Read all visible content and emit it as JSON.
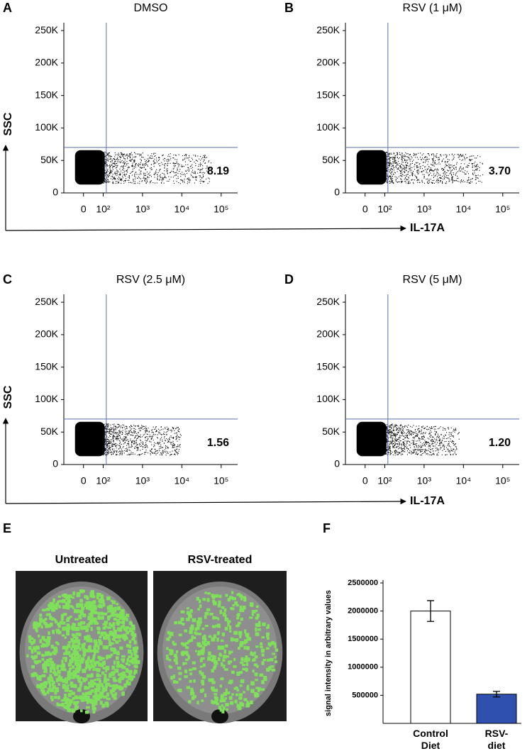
{
  "chart_data": [
    {
      "type": "flow",
      "panel": "A",
      "title": "DMSO",
      "annotation": "8.19",
      "ylabel": "SSC",
      "xlabel": "IL-17A",
      "xscale": "biexponential",
      "xlim": [
        -100,
        262144
      ],
      "ylim": [
        0,
        262144
      ],
      "xticks": [
        0,
        {
          "value": 100,
          "label": "10²"
        },
        {
          "value": 1000,
          "label": "10³"
        },
        {
          "value": 10000,
          "label": "10⁴"
        },
        {
          "value": 100000,
          "label": "10⁵"
        }
      ],
      "yticks": [
        0,
        {
          "value": 50000,
          "label": "50K"
        },
        {
          "value": 100000,
          "label": "100K"
        },
        {
          "value": 150000,
          "label": "150K"
        },
        {
          "value": 200000,
          "label": "200K"
        },
        {
          "value": 250000,
          "label": "250K"
        }
      ],
      "gate": {
        "x": 120,
        "y": 70000
      },
      "gate_color": "#5b6fb5"
    },
    {
      "type": "flow",
      "panel": "B",
      "title": "RSV (1 μM)",
      "annotation": "3.70",
      "xscale": "biexponential",
      "xlim": [
        -100,
        262144
      ],
      "ylim": [
        0,
        262144
      ],
      "xticks": [
        0,
        {
          "value": 100,
          "label": "10²"
        },
        {
          "value": 1000,
          "label": "10³"
        },
        {
          "value": 10000,
          "label": "10⁴"
        },
        {
          "value": 100000,
          "label": "10⁵"
        }
      ],
      "yticks": [
        0,
        {
          "value": 50000,
          "label": "50K"
        },
        {
          "value": 100000,
          "label": "100K"
        },
        {
          "value": 150000,
          "label": "150K"
        },
        {
          "value": 200000,
          "label": "200K"
        },
        {
          "value": 250000,
          "label": "250K"
        }
      ],
      "gate": {
        "x": 120,
        "y": 70000
      },
      "gate_color": "#5b6fb5"
    },
    {
      "type": "flow",
      "panel": "C",
      "title": "RSV (2.5 μM)",
      "annotation": "1.56",
      "ylabel": "SSC",
      "xlabel": "IL-17A",
      "xscale": "biexponential",
      "xlim": [
        -100,
        262144
      ],
      "ylim": [
        0,
        262144
      ],
      "xticks": [
        0,
        {
          "value": 100,
          "label": "10²"
        },
        {
          "value": 1000,
          "label": "10³"
        },
        {
          "value": 10000,
          "label": "10⁴"
        },
        {
          "value": 100000,
          "label": "10⁵"
        }
      ],
      "yticks": [
        0,
        {
          "value": 50000,
          "label": "50K"
        },
        {
          "value": 100000,
          "label": "100K"
        },
        {
          "value": 150000,
          "label": "150K"
        },
        {
          "value": 200000,
          "label": "200K"
        },
        {
          "value": 250000,
          "label": "250K"
        }
      ],
      "gate": {
        "x": 120,
        "y": 70000
      },
      "gate_color": "#5b6fb5"
    },
    {
      "type": "flow",
      "panel": "D",
      "title": "RSV (5 μM)",
      "annotation": "1.20",
      "xscale": "biexponential",
      "xlim": [
        -100,
        262144
      ],
      "ylim": [
        0,
        262144
      ],
      "xticks": [
        0,
        {
          "value": 100,
          "label": "10²"
        },
        {
          "value": 1000,
          "label": "10³"
        },
        {
          "value": 10000,
          "label": "10⁴"
        },
        {
          "value": 100000,
          "label": "10⁵"
        }
      ],
      "yticks": [
        0,
        {
          "value": 50000,
          "label": "50K"
        },
        {
          "value": 100000,
          "label": "100K"
        },
        {
          "value": 150000,
          "label": "150K"
        },
        {
          "value": 200000,
          "label": "200K"
        },
        {
          "value": 250000,
          "label": "250K"
        }
      ],
      "gate": {
        "x": 120,
        "y": 70000
      },
      "gate_color": "#5b6fb5"
    },
    {
      "type": "image",
      "panel": "E",
      "captions": [
        "Untreated",
        "RSV-treated"
      ]
    },
    {
      "type": "bar",
      "panel": "F",
      "ylabel": "signal intensity in arbitrary values",
      "categories": [
        "Control Diet",
        "RSV-diet"
      ],
      "values": [
        2000000,
        520000
      ],
      "errors": [
        185000,
        50000
      ],
      "colors": [
        "#ffffff",
        "#3050b0"
      ],
      "ylim": [
        0,
        2500000
      ],
      "yticks": [
        500000,
        1000000,
        1500000,
        2000000,
        2500000
      ]
    }
  ]
}
